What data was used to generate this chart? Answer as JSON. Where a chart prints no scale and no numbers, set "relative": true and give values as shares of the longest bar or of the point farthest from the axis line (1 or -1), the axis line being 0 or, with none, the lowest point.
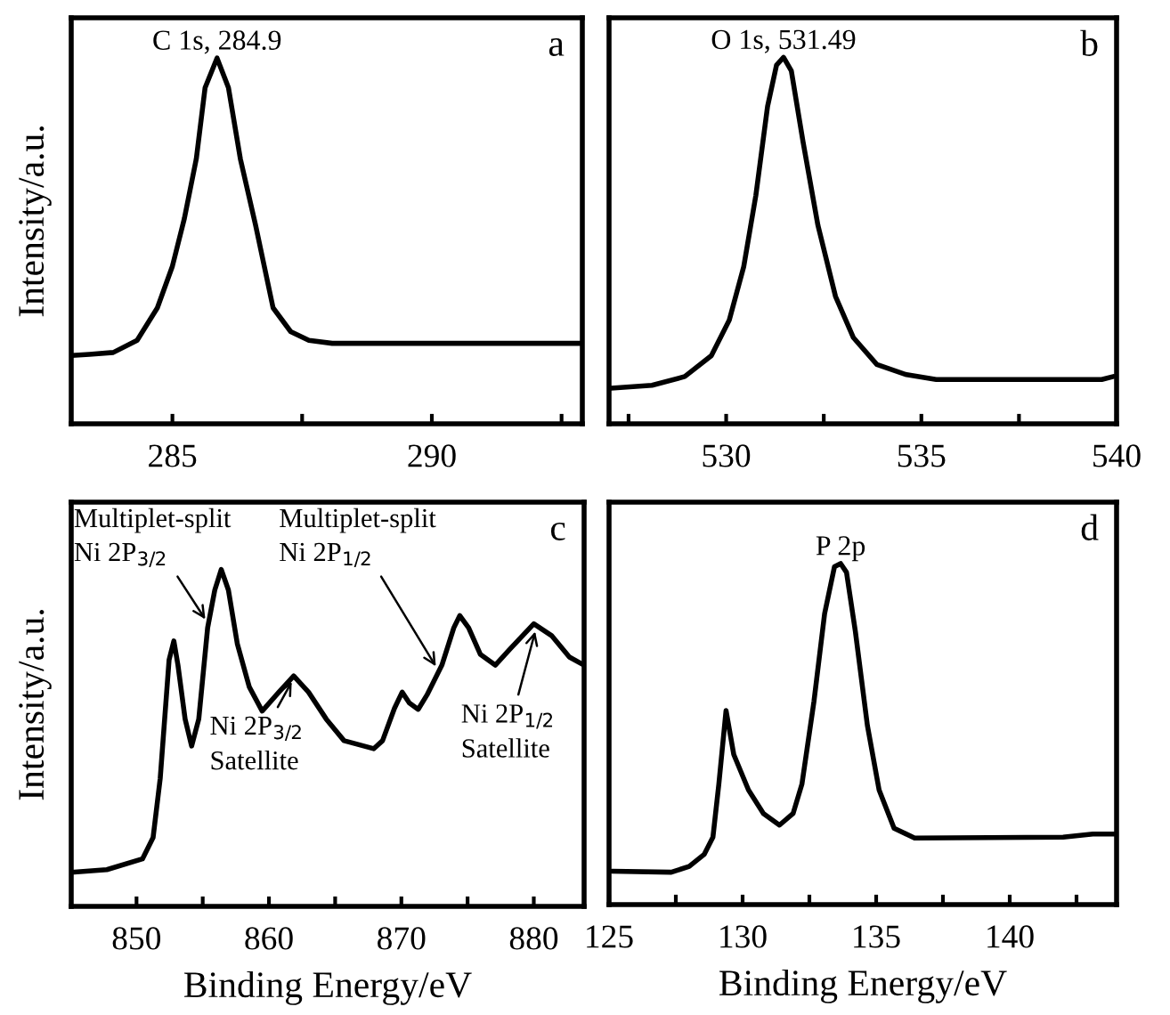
{
  "chart_data": [
    {
      "type": "line",
      "title": "a",
      "ylabel": "Intensity/a.u.",
      "relative": true,
      "tick_labels": "x",
      "xlim": [
        283.05,
        292.9
      ],
      "xticks": [
        285,
        {
          "value": 287.5,
          "label": null
        },
        290,
        {
          "value": 292.5,
          "label": null
        }
      ],
      "annotations": [
        {
          "text": "C 1s, 284.9",
          "x": 285.86,
          "y": 1.0
        }
      ],
      "series": [
        {
          "color": "#000000",
          "x": [
            283.06,
            283.4,
            283.86,
            284.32,
            284.71,
            285.0,
            285.23,
            285.46,
            285.63,
            285.86,
            286.08,
            286.31,
            286.6,
            286.94,
            287.28,
            287.63,
            288.08,
            292.88
          ],
          "values": [
            0.187,
            0.19,
            0.195,
            0.228,
            0.317,
            0.431,
            0.561,
            0.724,
            0.919,
            1.0,
            0.919,
            0.724,
            0.545,
            0.317,
            0.252,
            0.228,
            0.22,
            0.22
          ]
        }
      ]
    },
    {
      "type": "line",
      "title": "b",
      "relative": true,
      "tick_labels": "x",
      "xlim": [
        527,
        540
      ],
      "xticks": [
        {
          "value": 527.5,
          "label": null
        },
        530,
        {
          "value": 532.5,
          "label": null
        },
        535,
        {
          "value": 537.5,
          "label": null
        },
        540
      ],
      "annotations": [
        {
          "text": "O 1s, 531.49",
          "x": 531.47,
          "y": 1.0
        }
      ],
      "series": [
        {
          "color": "#000000",
          "x": [
            527.05,
            528.1,
            528.94,
            529.62,
            530.08,
            530.45,
            530.76,
            531.06,
            531.29,
            531.47,
            531.67,
            531.97,
            532.35,
            532.8,
            533.26,
            533.86,
            534.62,
            535.38,
            539.62,
            539.92
          ],
          "values": [
            0.097,
            0.105,
            0.129,
            0.186,
            0.283,
            0.429,
            0.623,
            0.866,
            0.979,
            1.0,
            0.963,
            0.769,
            0.542,
            0.348,
            0.235,
            0.162,
            0.134,
            0.121,
            0.121,
            0.129
          ]
        }
      ]
    },
    {
      "type": "line",
      "title": "c",
      "ylabel": "Intensity/a.u.",
      "xlabel": "Binding Energy/eV",
      "relative": true,
      "tick_labels": "x",
      "xlim": [
        845.07,
        883.8
      ],
      "xticks": [
        850,
        {
          "value": 855,
          "label": null
        },
        860,
        {
          "value": 865,
          "label": null
        },
        870,
        {
          "value": 875,
          "label": null
        },
        880
      ],
      "annotations": [
        {
          "text": "Multiplet-split\nNi 2P$_{3/2}$",
          "x": 855.4,
          "y": 0.84
        },
        {
          "text": "Multiplet-split\nNi 2P$_{1/2}$",
          "x": 872.8,
          "y": 0.7
        },
        {
          "text": "Ni 2P$_{3/2}$\nSatellite",
          "x": 861.9,
          "y": 0.68
        },
        {
          "text": "Ni 2P$_{1/2}$\nSatellite",
          "x": 880.2,
          "y": 0.83
        }
      ],
      "series": [
        {
          "color": "#000000",
          "x": [
            845.07,
            847.76,
            850.45,
            851.25,
            851.79,
            852.46,
            852.82,
            853.13,
            853.67,
            854.16,
            854.7,
            855.37,
            855.91,
            856.4,
            856.94,
            857.61,
            858.51,
            859.49,
            860.75,
            861.87,
            862.99,
            864.33,
            865.67,
            867.91,
            868.58,
            869.48,
            870.06,
            870.6,
            871.27,
            871.94,
            873.06,
            873.96,
            874.41,
            875.08,
            875.97,
            877.09,
            878.21,
            880.0,
            881.34,
            882.69,
            883.8
          ],
          "values": [
            0.101,
            0.109,
            0.141,
            0.204,
            0.38,
            0.732,
            0.788,
            0.716,
            0.556,
            0.476,
            0.556,
            0.827,
            0.939,
            1.0,
            0.939,
            0.78,
            0.652,
            0.58,
            0.636,
            0.684,
            0.636,
            0.556,
            0.492,
            0.468,
            0.492,
            0.588,
            0.636,
            0.604,
            0.585,
            0.628,
            0.716,
            0.827,
            0.863,
            0.827,
            0.748,
            0.716,
            0.764,
            0.839,
            0.804,
            0.74,
            0.716
          ]
        }
      ]
    },
    {
      "type": "line",
      "title": "d",
      "xlabel": "Binding Energy/eV",
      "relative": true,
      "tick_labels": "x",
      "xlim": [
        125,
        144
      ],
      "xticks": [
        125,
        {
          "value": 127.5,
          "label": null
        },
        130,
        {
          "value": 132.5,
          "label": null
        },
        135,
        {
          "value": 137.5,
          "label": null
        },
        140,
        {
          "value": 142.5,
          "label": null
        }
      ],
      "annotations": [
        {
          "text": "P 2p",
          "x": 133.67,
          "y": 1.0
        }
      ],
      "series": [
        {
          "color": "#000000",
          "x": [
            125.11,
            127.33,
            128.0,
            128.56,
            128.89,
            129.11,
            129.38,
            129.67,
            130.22,
            130.78,
            131.38,
            131.89,
            132.22,
            132.67,
            133.07,
            133.44,
            133.67,
            133.89,
            134.22,
            134.67,
            135.11,
            135.67,
            136.44,
            142.0,
            143.11,
            144.0
          ],
          "values": [
            0.098,
            0.095,
            0.112,
            0.147,
            0.198,
            0.353,
            0.569,
            0.44,
            0.336,
            0.267,
            0.233,
            0.267,
            0.353,
            0.595,
            0.853,
            0.991,
            1.0,
            0.974,
            0.802,
            0.526,
            0.336,
            0.224,
            0.195,
            0.198,
            0.207,
            0.207
          ]
        }
      ]
    }
  ]
}
